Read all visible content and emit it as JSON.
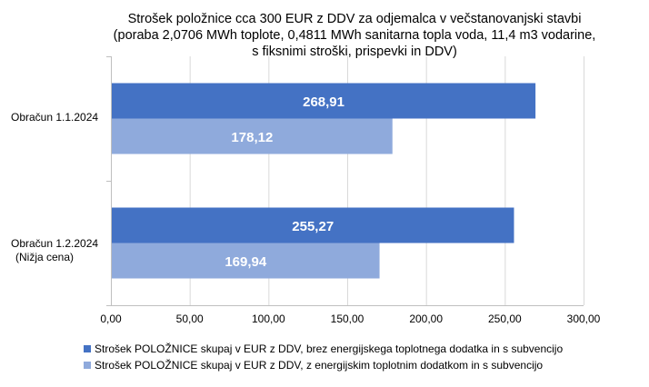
{
  "chart_data": {
    "type": "bar",
    "orientation": "horizontal",
    "title_lines": [
      "Strošek položnice cca 300 EUR z DDV za odjemalca v večstanovanjski stavbi",
      "(poraba 2,0706 MWh toplote, 0,4811 MWh sanitarna topla voda, 11,4 m3 vodarine,",
      "s fiksnimi stroški, prispevki in DDV)"
    ],
    "categories": [
      [
        "Obračun 1.1.2024"
      ],
      [
        "Obračun 1.2.2024",
        "(Nižja cena)"
      ]
    ],
    "series": [
      {
        "name": "Strošek POLOŽNICE skupaj v EUR z DDV, brez energijskega toplotnega dodatka in s subvencijo",
        "color": "#4472c4",
        "values": [
          268.91,
          255.27
        ],
        "labels": [
          "268,91",
          "255,27"
        ]
      },
      {
        "name": "Strošek POLOŽNICE skupaj v EUR z DDV, z energijskim toplotnim dodatkom in s subvencijo",
        "color": "#8faadc",
        "values": [
          178.12,
          169.94
        ],
        "labels": [
          "178,12",
          "169,94"
        ]
      }
    ],
    "xlim": [
      0,
      300
    ],
    "x_ticks": [
      0,
      50,
      100,
      150,
      200,
      250,
      300
    ],
    "x_tick_labels": [
      "0,00",
      "50,00",
      "100,00",
      "150,00",
      "200,00",
      "250,00",
      "300,00"
    ],
    "grid": true,
    "legend_position": "bottom"
  }
}
